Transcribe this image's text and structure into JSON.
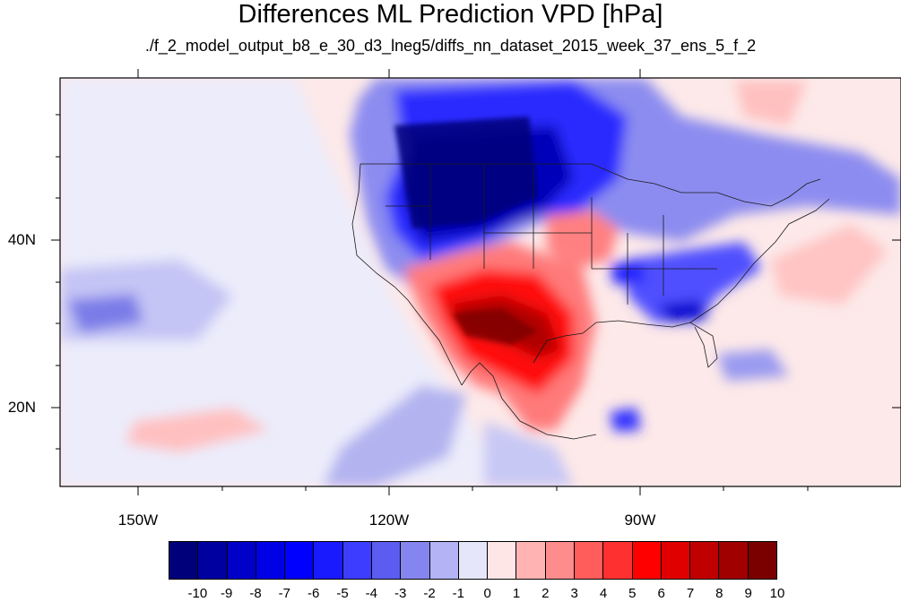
{
  "header": {
    "title": "Differences ML Prediction VPD [hPa]",
    "subtitle": "./f_2_model_output_b8_e_30_d3_lneg5/diffs_nn_dataset_2015_week_37_ens_5_f_2"
  },
  "map": {
    "lat_labels": [
      "40N",
      "20N"
    ],
    "lon_labels": [
      "150W",
      "120W",
      "90W"
    ],
    "extent": {
      "lon": [
        -160,
        -60
      ],
      "lat": [
        10,
        59
      ]
    }
  },
  "colorbar": {
    "labels": [
      "-10",
      "-9",
      "-8",
      "-7",
      "-6",
      "-5",
      "-4",
      "-3",
      "-2",
      "-1",
      "0",
      "1",
      "2",
      "3",
      "4",
      "5",
      "6",
      "7",
      "8",
      "9",
      "10"
    ],
    "colors": [
      "#00007a",
      "#0000a0",
      "#0000c8",
      "#0000e6",
      "#0000ff",
      "#1a1aff",
      "#3d3dff",
      "#5c5cf0",
      "#8585f0",
      "#b3b3f5",
      "#e6e6fa",
      "#ffe6e6",
      "#ffb3b3",
      "#ff8c8c",
      "#ff5c5c",
      "#ff3030",
      "#ff0000",
      "#e00000",
      "#c00000",
      "#a00000",
      "#7a0000"
    ]
  }
}
